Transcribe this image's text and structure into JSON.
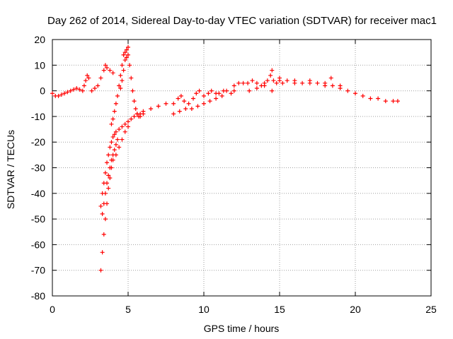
{
  "chart_data": {
    "type": "scatter",
    "title": "Day 262 of 2014, Sidereal Day-to-day VTEC variation (SDTVAR) for receiver mac1",
    "xlabel": "GPS time / hours",
    "ylabel": "SDTVAR / TECUs",
    "xlim": [
      0,
      25
    ],
    "ylim": [
      -80,
      20
    ],
    "xticks": [
      0,
      5,
      10,
      15,
      20,
      25
    ],
    "yticks": [
      -80,
      -70,
      -60,
      -50,
      -40,
      -30,
      -20,
      -10,
      0,
      10,
      20
    ],
    "grid": true,
    "marker": "+",
    "color": "#ff0000",
    "series": [
      {
        "name": "SDTVAR",
        "x": [
          0.0,
          0.2,
          0.4,
          0.6,
          0.8,
          1.0,
          1.2,
          1.4,
          1.6,
          1.8,
          2.0,
          2.1,
          2.2,
          2.3,
          2.4,
          2.6,
          2.8,
          3.0,
          3.2,
          3.4,
          3.5,
          3.6,
          3.8,
          4.0,
          3.2,
          3.3,
          3.4,
          3.5,
          3.6,
          3.7,
          3.8,
          3.9,
          4.0,
          4.1,
          4.2,
          4.4,
          4.6,
          4.8,
          5.0,
          5.2,
          5.4,
          5.6,
          5.8,
          6.0,
          3.2,
          3.3,
          3.4,
          3.5,
          3.6,
          3.7,
          3.8,
          3.9,
          4.0,
          4.2,
          4.4,
          4.6,
          4.8,
          5.0,
          3.3,
          3.4,
          3.5,
          3.6,
          3.7,
          3.8,
          3.9,
          4.0,
          4.1,
          4.2,
          4.3,
          3.9,
          4.0,
          4.1,
          4.2,
          4.3,
          4.4,
          4.5,
          4.6,
          4.7,
          4.8,
          4.9,
          4.5,
          4.6,
          4.7,
          4.8,
          4.9,
          5.0,
          5.0,
          5.1,
          5.2,
          5.3,
          5.4,
          5.5,
          5.6,
          5.7,
          5.8,
          6.0,
          6.5,
          7.0,
          7.5,
          8.0,
          8.3,
          8.5,
          8.7,
          9.0,
          9.3,
          9.5,
          9.7,
          10.0,
          10.3,
          10.5,
          10.8,
          11.0,
          11.3,
          11.5,
          11.8,
          12.0,
          8.0,
          8.4,
          8.8,
          9.2,
          9.6,
          10.0,
          10.4,
          10.8,
          11.2,
          12.0,
          12.3,
          12.6,
          12.9,
          13.2,
          13.5,
          13.8,
          14.0,
          14.2,
          14.4,
          14.5,
          14.6,
          14.8,
          15.0,
          13.0,
          13.5,
          14.0,
          14.5,
          15.0,
          15.5,
          16.0,
          16.5,
          17.0,
          17.5,
          18.0,
          18.5,
          19.0,
          19.5,
          20.0,
          20.5,
          21.0,
          21.5,
          22.0,
          22.5,
          22.8,
          15.2,
          16.0,
          17.0,
          18.0,
          18.4,
          19.0
        ],
        "y": [
          -1,
          -2,
          -2,
          -1.5,
          -1,
          -0.5,
          0,
          0.5,
          1,
          0.5,
          0,
          2,
          4,
          6,
          5,
          0,
          1,
          2,
          5,
          8,
          10,
          9,
          8,
          7,
          -45,
          -40,
          -36,
          -32,
          -28,
          -25,
          -22,
          -20,
          -18,
          -17,
          -16,
          -15,
          -14,
          -13,
          -12,
          -11,
          -10,
          -9,
          -9,
          -8,
          -70,
          -63,
          -56,
          -50,
          -44,
          -38,
          -34,
          -30,
          -27,
          -25,
          -22,
          -19,
          -16,
          -14,
          -48,
          -44,
          -40,
          -36,
          -33,
          -30,
          -27,
          -25,
          -23,
          -21,
          -19,
          -13,
          -11,
          -8,
          -5,
          -2,
          2,
          6,
          10,
          14,
          15,
          13,
          1,
          4,
          8,
          12,
          16,
          17,
          14,
          10,
          5,
          0,
          -4,
          -7,
          -9,
          -10,
          -10,
          -9,
          -7,
          -6,
          -5,
          -5,
          -3,
          -2,
          -4,
          -5,
          -3,
          -1,
          0,
          -2,
          -1,
          0,
          -1,
          -1,
          0,
          0,
          -1,
          0,
          -9,
          -8,
          -7,
          -7,
          -6,
          -5,
          -4,
          -3,
          -2,
          2,
          3,
          3,
          3,
          4,
          3,
          2,
          3,
          4,
          6,
          8,
          4,
          3,
          4,
          0,
          1,
          2,
          0,
          5,
          4,
          3,
          3,
          3,
          3,
          2,
          2,
          1,
          0,
          -1,
          -2,
          -3,
          -3,
          -4,
          -4,
          -4,
          3,
          4,
          4,
          3,
          5,
          2
        ]
      }
    ]
  }
}
